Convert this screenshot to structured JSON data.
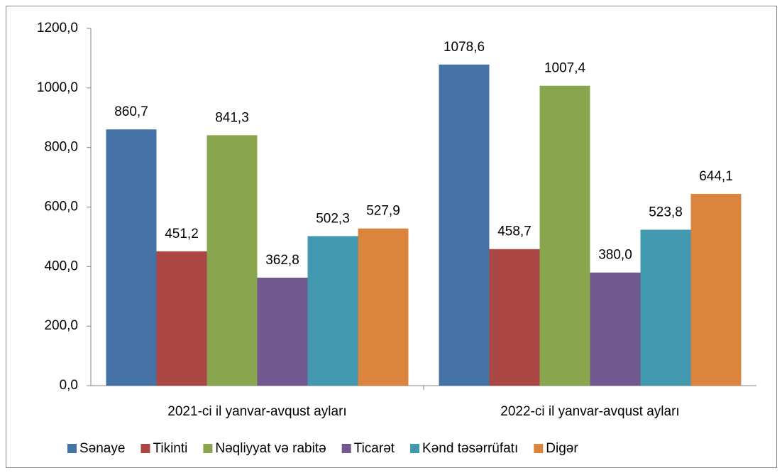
{
  "chart_data": {
    "type": "bar",
    "categories": [
      "2021-ci il yanvar-avqust ayları",
      "2022-ci il yanvar-avqust ayları"
    ],
    "series": [
      {
        "name": "Sənaye",
        "color": "#4572a7",
        "values": [
          860.7,
          1078.6
        ],
        "value_labels": [
          "860,7",
          "1078,6"
        ]
      },
      {
        "name": "Tikinti",
        "color": "#aa4643",
        "values": [
          451.2,
          458.7
        ],
        "value_labels": [
          "451,2",
          "458,7"
        ]
      },
      {
        "name": "Nəqliyyat və rabitə",
        "color": "#89a54e",
        "values": [
          841.3,
          1007.4
        ],
        "value_labels": [
          "841,3",
          "1007,4"
        ]
      },
      {
        "name": "Ticarət",
        "color": "#71588f",
        "values": [
          362.8,
          380.0
        ],
        "value_labels": [
          "362,8",
          "380,0"
        ]
      },
      {
        "name": "Kənd təsərrüfatı",
        "color": "#4198af",
        "values": [
          502.3,
          523.8
        ],
        "value_labels": [
          "502,3",
          "523,8"
        ]
      },
      {
        "name": "Digər",
        "color": "#db843d",
        "values": [
          527.9,
          644.1
        ],
        "value_labels": [
          "527,9",
          "644,1"
        ]
      }
    ],
    "ylim": [
      0,
      1200
    ],
    "yticks": [
      {
        "value": 0,
        "label": "0,0"
      },
      {
        "value": 200,
        "label": "200,0"
      },
      {
        "value": 400,
        "label": "400,0"
      },
      {
        "value": 600,
        "label": "600,0"
      },
      {
        "value": 800,
        "label": "800,0"
      },
      {
        "value": 1000,
        "label": "1000,0"
      },
      {
        "value": 1200,
        "label": "1200,0"
      }
    ],
    "legend": "bottom"
  }
}
